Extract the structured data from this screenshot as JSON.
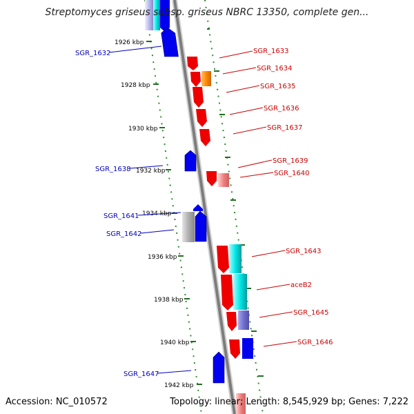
{
  "title": "Streptomyces griseus subsp. griseus NBRC 13350, complete gen...",
  "footer": {
    "accession": "Accession: NC_010572",
    "summary": "Topology: linear; Length: 8,545,929 bp; Genes: 7,222"
  },
  "colors": {
    "backbone": "#888888",
    "tick_dots": "#2a8a2a",
    "kbp_ticks": "#1e6e1e",
    "minus_label": "#0000bb",
    "plus_label": "#cc0000",
    "gene_red": "#ee0000",
    "gene_blue": "#0000ee",
    "gene_orange": "#ff8800",
    "gene_cyan": "#00e5e5",
    "gene_gray": "#aaaaaa",
    "gene_purple": "#7070cc"
  },
  "kbp_labels": [
    "1926 kbp",
    "1928 kbp",
    "1930 kbp",
    "1932 kbp",
    "1934 kbp",
    "1936 kbp",
    "1938 kbp",
    "1940 kbp",
    "1942 kbp"
  ],
  "genes": [
    {
      "label": "SGR_1632",
      "strand": "minus"
    },
    {
      "label": "SGR_1633",
      "strand": "plus"
    },
    {
      "label": "SGR_1634",
      "strand": "plus"
    },
    {
      "label": "SGR_1635",
      "strand": "plus"
    },
    {
      "label": "SGR_1636",
      "strand": "plus"
    },
    {
      "label": "SGR_1637",
      "strand": "plus"
    },
    {
      "label": "SGR_1638",
      "strand": "minus"
    },
    {
      "label": "SGR_1639",
      "strand": "plus"
    },
    {
      "label": "SGR_1640",
      "strand": "plus"
    },
    {
      "label": "SGR_1641",
      "strand": "minus"
    },
    {
      "label": "SGR_1642",
      "strand": "minus"
    },
    {
      "label": "SGR_1643",
      "strand": "plus"
    },
    {
      "label": "aceB2",
      "strand": "plus"
    },
    {
      "label": "SGR_1645",
      "strand": "plus"
    },
    {
      "label": "SGR_1646",
      "strand": "plus"
    },
    {
      "label": "SGR_1647",
      "strand": "minus"
    }
  ]
}
